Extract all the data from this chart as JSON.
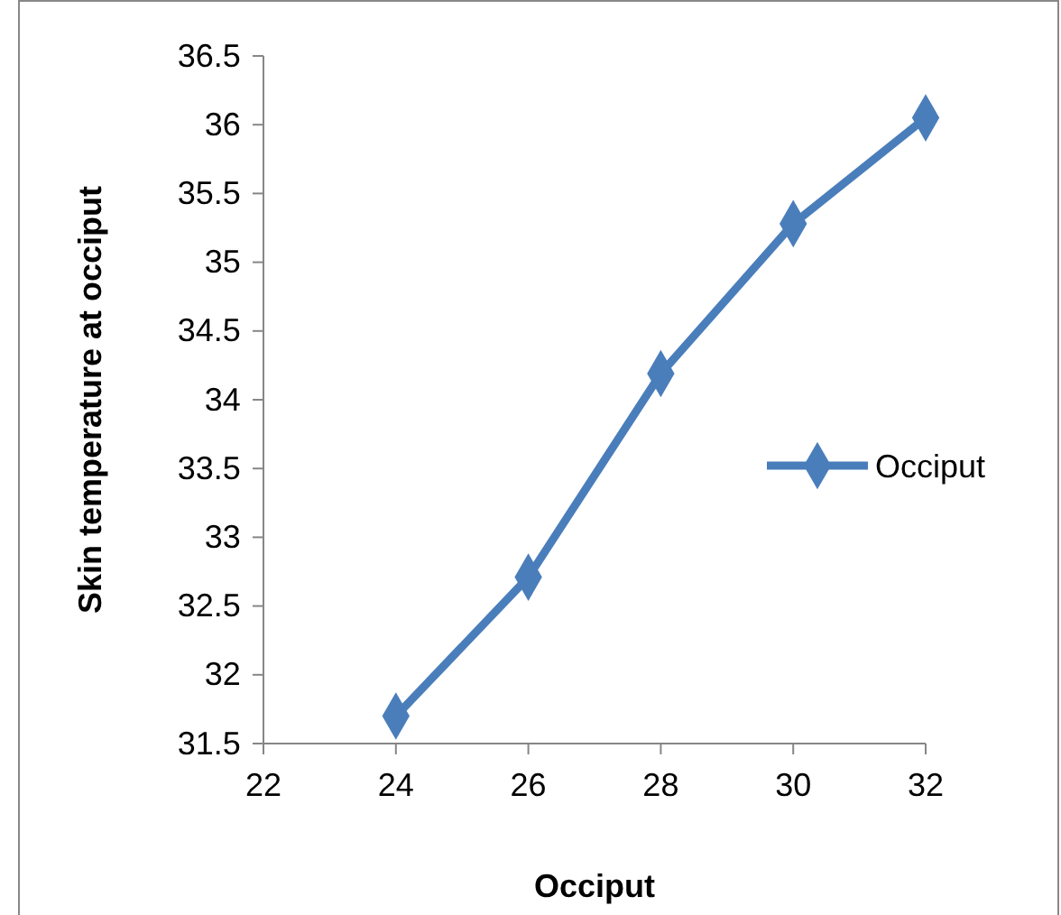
{
  "chart_data": {
    "type": "line",
    "xlabel": "Occiput",
    "ylabel": "Skin temperature at occiput",
    "x": [
      24,
      26,
      28,
      30,
      32
    ],
    "series": [
      {
        "name": "Occiput",
        "color": "#4a7ebb",
        "values": [
          31.7,
          32.71,
          34.19,
          35.28,
          36.05
        ]
      }
    ],
    "xlim": [
      22,
      32
    ],
    "xticks": [
      22,
      24,
      26,
      28,
      30,
      32
    ],
    "ylim": [
      31.5,
      36.5
    ],
    "yticks": [
      {
        "value": 31.5,
        "label": "31.5"
      },
      32,
      {
        "value": 32.5,
        "label": "32.5"
      },
      33,
      {
        "value": 33.5,
        "label": "33.5"
      },
      34,
      {
        "value": 34.5,
        "label": "34.5"
      },
      35,
      {
        "value": 35.5,
        "label": "35.5"
      },
      36,
      {
        "value": 36.5,
        "label": "36.5"
      }
    ],
    "grid": false,
    "legend": "right",
    "marker": "diamond",
    "line_style": "solid"
  }
}
